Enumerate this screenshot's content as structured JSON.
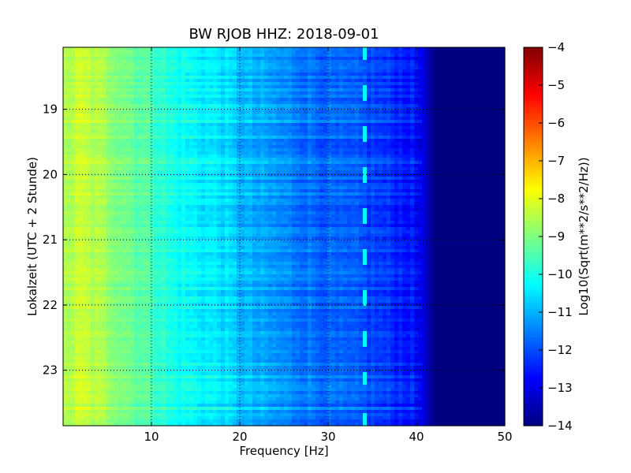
{
  "chart_data": {
    "type": "heatmap",
    "title": "BW RJOB HHZ: 2018-09-01",
    "xlabel": "Frequency [Hz]",
    "ylabel": "Lokalzeit (UTC + 2 Stunde)",
    "xlim": [
      0,
      50
    ],
    "ylim": [
      18.05,
      23.85
    ],
    "y_inverted": true,
    "x_ticks": [
      10,
      20,
      30,
      40,
      50
    ],
    "y_ticks": [
      19,
      20,
      21,
      22,
      23
    ],
    "grid": true,
    "colormap": "jet",
    "colorbar": {
      "label": "Log10(Sqrt(m**2/s**2/Hz))",
      "min": -14,
      "max": -4,
      "ticks": [
        -4,
        -5,
        -6,
        -7,
        -8,
        -9,
        -10,
        -11,
        -12,
        -13,
        -14
      ]
    },
    "spectrum_profile": {
      "frequency_hz": [
        0,
        2,
        5,
        8,
        10,
        12,
        15,
        18,
        20,
        22,
        25,
        30,
        34,
        38,
        40,
        41,
        42,
        45,
        50
      ],
      "log10_amplitude": [
        -8.6,
        -8.3,
        -8.7,
        -9.2,
        -9.5,
        -10.0,
        -10.3,
        -10.5,
        -10.9,
        -11.1,
        -11.4,
        -11.8,
        -12.0,
        -12.4,
        -12.6,
        -13.2,
        -14,
        -14,
        -14
      ]
    },
    "tonal_line_hz": 34.3
  }
}
